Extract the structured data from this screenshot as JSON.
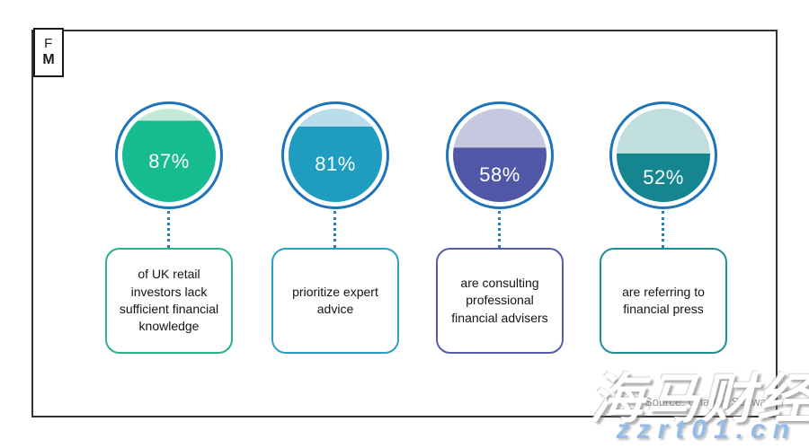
{
  "logo": {
    "line1": "F",
    "line2": "M"
  },
  "source": "Source: Charles Schwab",
  "watermarks": {
    "cjk": "海马财经",
    "url": "zzrt01.cn"
  },
  "colors": {
    "ring": "#1d74ba",
    "connector": "#2b7cae",
    "frame": "#333333"
  },
  "gauges": [
    {
      "value": "87%",
      "pct": 87,
      "label": "of UK retail investors lack sufficient financial knowledge",
      "fill": "#16bb8f",
      "light": "#c3ead8",
      "box_border": "#2ab38a"
    },
    {
      "value": "81%",
      "pct": 81,
      "label": "prioritize expert advice",
      "fill": "#1f9dc1",
      "light": "#b9dded",
      "box_border": "#2b9fc4"
    },
    {
      "value": "58%",
      "pct": 58,
      "label": "are consulting professional financial advisers",
      "fill": "#5057a6",
      "light": "#c6c8e0",
      "box_border": "#575ca9"
    },
    {
      "value": "52%",
      "pct": 52,
      "label": "are referring to financial press",
      "fill": "#15858f",
      "light": "#bfdedd",
      "box_border": "#1f8d96"
    }
  ],
  "chart_data": {
    "type": "bar",
    "variant": "filled-circle-gauges",
    "categories": [
      "of UK retail investors lack sufficient financial knowledge",
      "prioritize expert advice",
      "are consulting professional financial advisers",
      "are referring to financial press"
    ],
    "values": [
      87,
      81,
      58,
      52
    ],
    "unit": "%",
    "title": "",
    "xlabel": "",
    "ylabel": "",
    "ylim": [
      0,
      100
    ],
    "legend": "none",
    "source": "Source: Charles Schwab"
  }
}
